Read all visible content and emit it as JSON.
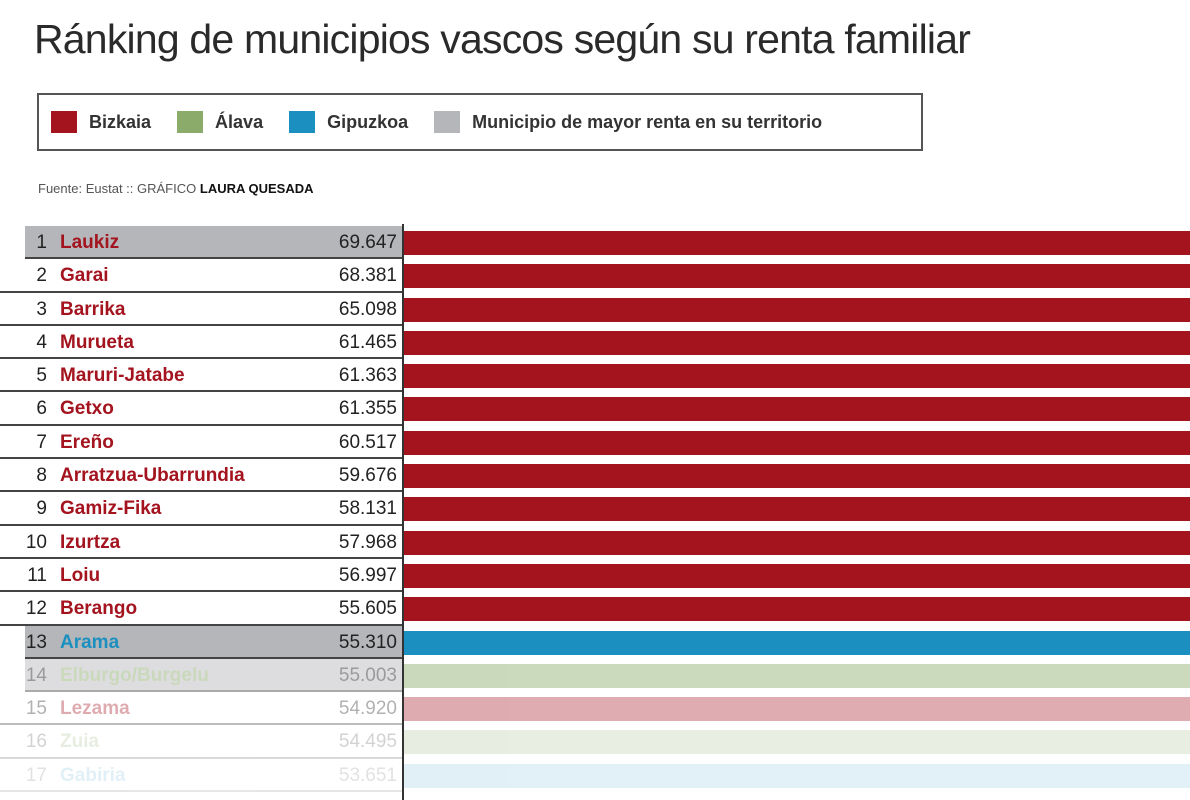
{
  "chart_data": {
    "type": "bar",
    "title": "Ránking de municipios vascos según su renta familiar",
    "source": "Fuente: Eustat",
    "credit_prefix": "GRÁFICO",
    "credit_name": "LAURA QUESADA",
    "legend": [
      {
        "label": "Bizkaia",
        "color": "#a3141f"
      },
      {
        "label": "Álava",
        "color": "#8bab6b"
      },
      {
        "label": "Gipuzkoa",
        "color": "#1b90c0"
      },
      {
        "label": "Municipio de mayor renta en su territorio",
        "color": "#b5b6b9"
      }
    ],
    "rows": [
      {
        "rank": "1",
        "name": "Laukiz",
        "value": "69.647",
        "territory": "Bizkaia",
        "highlight": true
      },
      {
        "rank": "2",
        "name": "Garai",
        "value": "68.381",
        "territory": "Bizkaia"
      },
      {
        "rank": "3",
        "name": "Barrika",
        "value": "65.098",
        "territory": "Bizkaia"
      },
      {
        "rank": "4",
        "name": "Murueta",
        "value": "61.465",
        "territory": "Bizkaia"
      },
      {
        "rank": "5",
        "name": "Maruri-Jatabe",
        "value": "61.363",
        "territory": "Bizkaia"
      },
      {
        "rank": "6",
        "name": "Getxo",
        "value": "61.355",
        "territory": "Bizkaia"
      },
      {
        "rank": "7",
        "name": "Ereño",
        "value": "60.517",
        "territory": "Bizkaia"
      },
      {
        "rank": "8",
        "name": "Arratzua-Ubarrundia",
        "value": "59.676",
        "territory": "Bizkaia"
      },
      {
        "rank": "9",
        "name": "Gamiz-Fika",
        "value": "58.131",
        "territory": "Bizkaia"
      },
      {
        "rank": "10",
        "name": "Izurtza",
        "value": "57.968",
        "territory": "Bizkaia"
      },
      {
        "rank": "11",
        "name": "Loiu",
        "value": "56.997",
        "territory": "Bizkaia"
      },
      {
        "rank": "12",
        "name": "Berango",
        "value": "55.605",
        "territory": "Bizkaia"
      },
      {
        "rank": "13",
        "name": "Arama",
        "value": "55.310",
        "territory": "Gipuzkoa",
        "highlight": true
      },
      {
        "rank": "14",
        "name": "Elburgo/Burgelu",
        "value": "55.003",
        "territory": "Álava",
        "highlight": true
      },
      {
        "rank": "15",
        "name": "Lezama",
        "value": "54.920",
        "territory": "Bizkaia"
      },
      {
        "rank": "16",
        "name": "Zuia",
        "value": "54.495",
        "territory": "Álava"
      },
      {
        "rank": "17",
        "name": "Gabiria",
        "value": "53.651",
        "territory": "Gipuzkoa"
      }
    ]
  }
}
